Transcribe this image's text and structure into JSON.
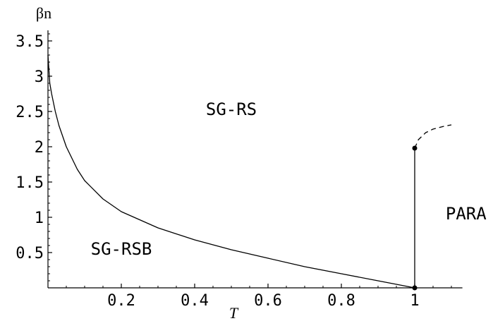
{
  "chart_data": {
    "type": "line",
    "xlabel": "T",
    "ylabel": "βn",
    "xlim": [
      0,
      1.13
    ],
    "ylim": [
      0,
      3.65
    ],
    "x_ticks": [
      {
        "value": 0.2,
        "label": "0.2"
      },
      {
        "value": 0.4,
        "label": "0.4"
      },
      {
        "value": 0.6,
        "label": "0.6"
      },
      {
        "value": 0.8,
        "label": "0.8"
      },
      {
        "value": 1.0,
        "label": "1"
      }
    ],
    "y_ticks": [
      {
        "value": 0.5,
        "label": "0.5"
      },
      {
        "value": 1.0,
        "label": "1"
      },
      {
        "value": 1.5,
        "label": "1.5"
      },
      {
        "value": 2.0,
        "label": "2"
      },
      {
        "value": 2.5,
        "label": "2.5"
      },
      {
        "value": 3.0,
        "label": "3"
      },
      {
        "value": 3.5,
        "label": "3.5"
      }
    ],
    "series": [
      {
        "style": "solid",
        "x": [
          0.0,
          0.005,
          0.01,
          0.02,
          0.03,
          0.05,
          0.08,
          0.1,
          0.15,
          0.2,
          0.3,
          0.4,
          0.5,
          0.6,
          0.7,
          0.8,
          0.9,
          1.0
        ],
        "y": [
          3.3,
          2.9,
          2.75,
          2.5,
          2.3,
          2.0,
          1.68,
          1.52,
          1.26,
          1.08,
          0.85,
          0.68,
          0.54,
          0.42,
          0.3,
          0.2,
          0.1,
          0.0
        ]
      },
      {
        "style": "solid",
        "x": [
          1.0,
          1.0
        ],
        "y": [
          0.0,
          1.98
        ]
      },
      {
        "style": "dashed",
        "x": [
          1.0,
          1.01,
          1.03,
          1.05,
          1.08,
          1.1
        ],
        "y": [
          1.98,
          2.1,
          2.2,
          2.25,
          2.29,
          2.31
        ]
      }
    ],
    "points": [
      {
        "x": 1.0,
        "y": 0.0
      },
      {
        "x": 1.0,
        "y": 1.98
      }
    ],
    "annotations": [
      {
        "text": "SG-RS",
        "x": 0.5,
        "y": 2.45
      },
      {
        "text": "SG-RSB",
        "x": 0.2,
        "y": 0.47
      },
      {
        "text": "PARA",
        "x": 1.14,
        "y": 0.97
      }
    ],
    "grid": false
  }
}
